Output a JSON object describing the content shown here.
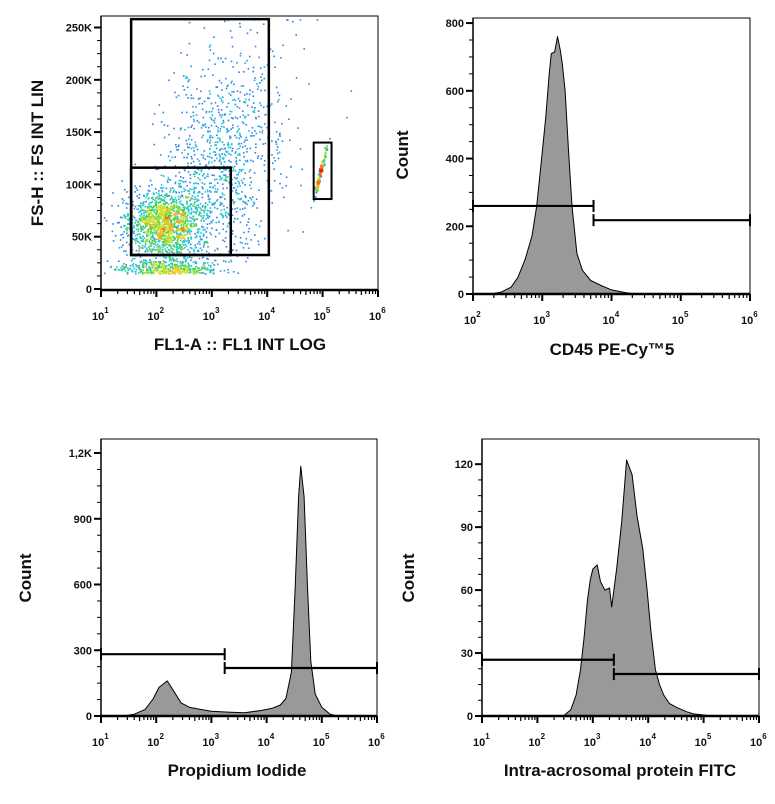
{
  "colors": {
    "histogram_fill": "#999999",
    "outline": "#000000",
    "density_colormap": [
      "#1a1ad0",
      "#2f7fe8",
      "#22c8d8",
      "#3ed24a",
      "#d8e628",
      "#f3a21a",
      "#e82418"
    ]
  },
  "chart_data": [
    {
      "type": "scatter",
      "xlabel": "FL1-A :: FL1 INT LOG",
      "ylabel": "FS-H :: FS INT LIN",
      "xscale": "log",
      "xlim": [
        10,
        1000000
      ],
      "ylim": [
        0,
        261000
      ],
      "xticks": [
        {
          "base": "10",
          "exp": "1"
        },
        {
          "base": "10",
          "exp": "2"
        },
        {
          "base": "10",
          "exp": "3"
        },
        {
          "base": "10",
          "exp": "4"
        },
        {
          "base": "10",
          "exp": "5"
        },
        {
          "base": "10",
          "exp": "6"
        }
      ],
      "yticks": [
        0,
        50000,
        100000,
        150000,
        200000,
        250000
      ],
      "ytick_labels": [
        "0",
        "50K",
        "100K",
        "150K",
        "200K",
        "250K"
      ],
      "coloring": "density (blue low to red high)",
      "populations": [
        {
          "x_center": 126,
          "y_center": 62000,
          "x_spread_decades": 0.35,
          "y_spread": 17000,
          "weight": 0.45
        },
        {
          "x_center": 160,
          "y_center": 20000,
          "x_spread_decades": 0.45,
          "y_spread": 4000,
          "weight": 0.12
        },
        {
          "x_center": 800,
          "y_center": 110000,
          "x_spread_decades": 0.55,
          "y_spread": 55000,
          "weight": 0.33
        },
        {
          "x_center": 90000,
          "y_center": 112000,
          "x_spread_decades": 0.06,
          "y_spread": 9000,
          "weight": 0.05
        }
      ],
      "gates": [
        {
          "x": [
            35,
            10700
          ],
          "y": [
            32500,
            258000
          ]
        },
        {
          "x": [
            35,
            2200
          ],
          "y": [
            32500,
            116000
          ]
        },
        {
          "x": [
            69000,
            145000
          ],
          "y": [
            86000,
            140000
          ]
        }
      ]
    },
    {
      "type": "area",
      "xlabel": "CD45 PE-Cy™5",
      "ylabel": "Count",
      "xscale": "log",
      "xlim": [
        100,
        1000000
      ],
      "ylim": [
        0,
        815
      ],
      "xticks": [
        {
          "base": "10",
          "exp": "2"
        },
        {
          "base": "10",
          "exp": "3"
        },
        {
          "base": "10",
          "exp": "4"
        },
        {
          "base": "10",
          "exp": "5"
        },
        {
          "base": "10",
          "exp": "6"
        }
      ],
      "yticks": [
        0,
        200,
        400,
        600,
        800
      ],
      "ytick_labels": [
        "0",
        "200",
        "400",
        "600",
        "800"
      ],
      "x": [
        178,
        251,
        355,
        447,
        562,
        708,
        832,
        955,
        1122,
        1259,
        1349,
        1514,
        1660,
        1820,
        1950,
        2138,
        2399,
        2692,
        3162,
        3802,
        5012,
        7079,
        10000,
        15849,
        22387
      ],
      "values": [
        0,
        5,
        20,
        50,
        100,
        170,
        260,
        380,
        520,
        650,
        710,
        715,
        760,
        720,
        680,
        600,
        420,
        260,
        120,
        70,
        40,
        25,
        12,
        4,
        0
      ],
      "gates": [
        {
          "x": [
            100,
            5500
          ],
          "y": 260
        },
        {
          "x": [
            5500,
            1000000
          ],
          "y": 218
        }
      ]
    },
    {
      "type": "area",
      "xlabel": "Propidium Iodide",
      "ylabel": "Count",
      "xscale": "log",
      "xlim": [
        10,
        1000000
      ],
      "ylim": [
        0,
        1264
      ],
      "xticks": [
        {
          "base": "10",
          "exp": "1"
        },
        {
          "base": "10",
          "exp": "2"
        },
        {
          "base": "10",
          "exp": "3"
        },
        {
          "base": "10",
          "exp": "4"
        },
        {
          "base": "10",
          "exp": "5"
        },
        {
          "base": "10",
          "exp": "6"
        }
      ],
      "yticks": [
        0,
        300,
        600,
        900,
        1200
      ],
      "ytick_labels": [
        "0",
        "300",
        "600",
        "900",
        "1,2K"
      ],
      "x": [
        25,
        40,
        63,
        89,
        112,
        141,
        158,
        200,
        282,
        398,
        631,
        1000,
        1995,
        3981,
        7943,
        12589,
        17783,
        22387,
        28184,
        33113,
        38019,
        41687,
        47863,
        54954,
        63096,
        75858,
        100000,
        141254,
        199526
      ],
      "values": [
        0,
        8,
        30,
        80,
        130,
        150,
        160,
        120,
        60,
        40,
        30,
        22,
        18,
        15,
        25,
        35,
        50,
        80,
        200,
        600,
        1000,
        1140,
        1000,
        600,
        250,
        100,
        40,
        8,
        0
      ],
      "gates": [
        {
          "x": [
            10,
            1740
          ],
          "y": 282
        },
        {
          "x": [
            1740,
            1000000
          ],
          "y": 219
        }
      ]
    },
    {
      "type": "area",
      "xlabel": "Intra-acrosomal protein FITC",
      "ylabel": "Count",
      "xscale": "log",
      "xlim": [
        10,
        1000000
      ],
      "ylim": [
        0,
        132
      ],
      "xticks": [
        {
          "base": "10",
          "exp": "1"
        },
        {
          "base": "10",
          "exp": "2"
        },
        {
          "base": "10",
          "exp": "3"
        },
        {
          "base": "10",
          "exp": "4"
        },
        {
          "base": "10",
          "exp": "5"
        },
        {
          "base": "10",
          "exp": "6"
        }
      ],
      "yticks": [
        0,
        30,
        60,
        90,
        120
      ],
      "ytick_labels": [
        "0",
        "30",
        "60",
        "90",
        "120"
      ],
      "x": [
        295,
        400,
        500,
        600,
        700,
        800,
        900,
        1000,
        1202,
        1380,
        1660,
        2000,
        2190,
        2692,
        3311,
        4074,
        5129,
        6310,
        7943,
        9550,
        11220,
        13490,
        16000,
        19055,
        24000,
        33113,
        50000,
        66070,
        100000,
        151356
      ],
      "values": [
        0,
        3,
        10,
        22,
        38,
        55,
        65,
        70,
        72,
        64,
        60,
        61,
        52,
        70,
        92,
        122,
        115,
        95,
        80,
        60,
        40,
        22,
        15,
        10,
        6,
        4,
        2,
        1,
        0.5,
        0
      ],
      "gates": [
        {
          "x": [
            10,
            2400
          ],
          "y": 26.8
        },
        {
          "x": [
            2400,
            1000000
          ],
          "y": 20
        }
      ]
    }
  ]
}
